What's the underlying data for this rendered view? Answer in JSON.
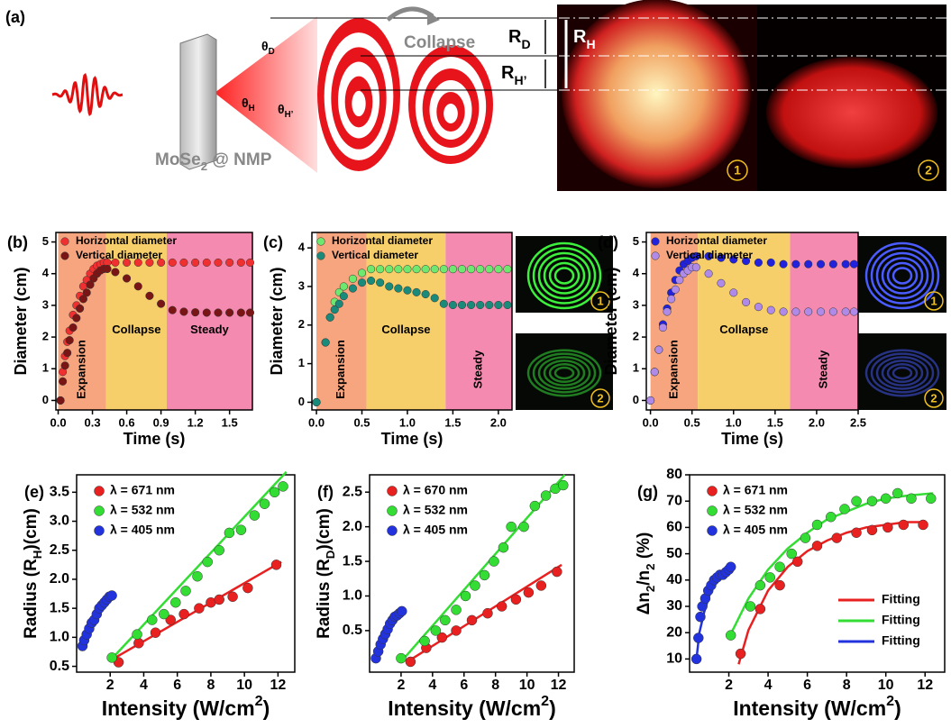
{
  "panel_a": {
    "label": "(a)",
    "collapse": "Collapse",
    "sample": [
      "MoSe",
      {
        "sub": "2"
      },
      " @ NMP"
    ],
    "R_D": [
      "R",
      {
        "sub": "D"
      }
    ],
    "R_H": [
      "R",
      {
        "sub": "H"
      }
    ],
    "R_H2": [
      "R",
      {
        "sub": "H’"
      }
    ],
    "theta_D": [
      "θ",
      {
        "sub": "D"
      }
    ],
    "theta_H": [
      "θ",
      {
        "sub": "H"
      }
    ],
    "theta_H2": [
      "θ",
      {
        "sub": "H’"
      }
    ],
    "photo_labels": [
      "1",
      "2"
    ]
  },
  "chart_data": [
    {
      "type": "scatter",
      "panel": "(b)",
      "y_label": [
        "Diameter (cm)"
      ],
      "x_label": [
        "Time (s)"
      ],
      "xlim": [
        -0.02,
        1.7
      ],
      "xticks": [
        {
          "value": 0,
          "label": "0.0"
        },
        0.3,
        0.6,
        0.9,
        1.2,
        1.5
      ],
      "ylim": [
        -0.3,
        5.3
      ],
      "yticks": [
        0,
        1,
        2,
        3,
        4,
        5
      ],
      "regions": [
        {
          "label": "Expansion",
          "start": 0,
          "end": 0.42,
          "color": "#f6a57e",
          "vertical": true
        },
        {
          "label": "Collapse",
          "start": 0.42,
          "end": 0.95,
          "color": "#f7cf6a",
          "vertical": false
        },
        {
          "label": "Steady",
          "start": 0.95,
          "end": 1.7,
          "color": "#f58ab0",
          "vertical": false
        }
      ],
      "x": [
        0.02,
        0.04,
        0.06,
        0.08,
        0.1,
        0.13,
        0.16,
        0.19,
        0.22,
        0.25,
        0.28,
        0.31,
        0.34,
        0.37,
        0.4,
        0.43,
        0.5,
        0.6,
        0.7,
        0.8,
        0.9,
        1.0,
        1.1,
        1.2,
        1.3,
        1.4,
        1.5,
        1.6,
        1.68
      ],
      "series": [
        {
          "name": "Horizontal diameter",
          "color": "#f03030",
          "values": [
            0,
            0.9,
            1.4,
            1.85,
            2.2,
            2.7,
            3.0,
            3.3,
            3.6,
            3.8,
            4.0,
            4.15,
            4.25,
            4.3,
            4.35,
            4.35,
            4.35,
            4.35,
            4.35,
            4.35,
            4.35,
            4.35,
            4.35,
            4.35,
            4.35,
            4.35,
            4.35,
            4.35,
            4.35
          ]
        },
        {
          "name": "Vertical diameter",
          "color": "#7a1515",
          "values": [
            0,
            0.6,
            1.1,
            1.5,
            1.9,
            2.3,
            2.6,
            2.9,
            3.2,
            3.4,
            3.65,
            3.85,
            4.0,
            4.1,
            4.15,
            4.15,
            4.05,
            3.85,
            3.6,
            3.3,
            3.05,
            2.85,
            2.8,
            2.78,
            2.77,
            2.77,
            2.77,
            2.77,
            2.77
          ]
        }
      ]
    },
    {
      "type": "scatter",
      "panel": "(c)",
      "y_label": [
        "Diameter (cm)"
      ],
      "x_label": [
        "Time (s)"
      ],
      "xlim": [
        -0.05,
        2.15
      ],
      "xticks": [
        {
          "value": 0,
          "label": "0.0"
        },
        0.5,
        {
          "value": 1,
          "label": "1.0"
        },
        1.5,
        {
          "value": 2,
          "label": "2.0"
        }
      ],
      "ylim": [
        -0.2,
        4.4
      ],
      "yticks": [
        0,
        1,
        2,
        3,
        4
      ],
      "regions": [
        {
          "label": "Expansion",
          "start": 0,
          "end": 0.55,
          "color": "#f6a57e",
          "vertical": true
        },
        {
          "label": "Collapse",
          "start": 0.55,
          "end": 1.42,
          "color": "#f7cf6a",
          "vertical": false
        },
        {
          "label": "Steady",
          "start": 1.42,
          "end": 2.15,
          "color": "#f58ab0",
          "vertical": true
        }
      ],
      "x": [
        0,
        0.1,
        0.15,
        0.2,
        0.25,
        0.3,
        0.4,
        0.5,
        0.6,
        0.7,
        0.8,
        0.9,
        1.0,
        1.1,
        1.2,
        1.3,
        1.4,
        1.5,
        1.6,
        1.7,
        1.8,
        1.9,
        2.0,
        2.1
      ],
      "series": [
        {
          "name": "Horizontal diameter",
          "color": "#6ee86e",
          "values": [
            0,
            1.55,
            2.2,
            2.6,
            2.85,
            3.0,
            3.2,
            3.35,
            3.45,
            3.45,
            3.45,
            3.45,
            3.45,
            3.45,
            3.45,
            3.45,
            3.45,
            3.45,
            3.45,
            3.45,
            3.45,
            3.45,
            3.45,
            3.45
          ]
        },
        {
          "name": "Vertical diameter",
          "color": "#1a8a7a",
          "values": [
            0,
            1.55,
            2.2,
            2.4,
            2.55,
            2.75,
            2.95,
            3.1,
            3.15,
            3.1,
            3.0,
            2.95,
            2.9,
            2.85,
            2.8,
            2.7,
            2.55,
            2.52,
            2.52,
            2.52,
            2.52,
            2.52,
            2.52,
            2.52
          ]
        }
      ],
      "insets": {
        "color": "#3cf03c",
        "labels": [
          "1",
          "2"
        ]
      }
    },
    {
      "type": "scatter",
      "panel": "(d)",
      "y_label": [
        "Diameter (cm)"
      ],
      "x_label": [
        "Time (s)"
      ],
      "xlim": [
        -0.05,
        2.5
      ],
      "xticks": [
        {
          "value": 0,
          "label": "0.0"
        },
        0.5,
        {
          "value": 1,
          "label": "1.0"
        },
        1.5,
        {
          "value": 2,
          "label": "2.0"
        },
        2.5
      ],
      "ylim": [
        -0.3,
        5.3
      ],
      "yticks": [
        0,
        1,
        2,
        3,
        4,
        5
      ],
      "regions": [
        {
          "label": "Expansion",
          "start": 0,
          "end": 0.57,
          "color": "#f6a57e",
          "vertical": true
        },
        {
          "label": "Collapse",
          "start": 0.57,
          "end": 1.68,
          "color": "#f7cf6a",
          "vertical": false
        },
        {
          "label": "Steady",
          "start": 1.68,
          "end": 2.5,
          "color": "#f58ab0",
          "vertical": true
        }
      ],
      "x": [
        0,
        0.05,
        0.1,
        0.15,
        0.2,
        0.25,
        0.3,
        0.35,
        0.4,
        0.45,
        0.5,
        0.55,
        0.7,
        0.85,
        1.0,
        1.15,
        1.3,
        1.45,
        1.6,
        1.75,
        1.9,
        2.05,
        2.2,
        2.35,
        2.45
      ],
      "series": [
        {
          "name": "Horizontal diameter",
          "color": "#2222dd",
          "values": [
            0,
            0.9,
            1.6,
            2.4,
            2.9,
            3.4,
            3.8,
            4.1,
            4.3,
            4.4,
            4.5,
            4.55,
            4.55,
            4.5,
            4.45,
            4.4,
            4.35,
            4.35,
            4.3,
            4.3,
            4.3,
            4.3,
            4.3,
            4.3,
            4.3
          ]
        },
        {
          "name": "Vertical diameter",
          "color": "#b08ae8",
          "values": [
            0,
            0.9,
            1.6,
            2.3,
            2.8,
            3.2,
            3.5,
            3.8,
            4.0,
            4.1,
            4.2,
            4.2,
            4.0,
            3.7,
            3.4,
            3.1,
            2.95,
            2.85,
            2.8,
            2.8,
            2.8,
            2.8,
            2.8,
            2.8,
            2.8
          ]
        }
      ],
      "insets": {
        "color": "#4a5cff",
        "labels": [
          "1",
          "2"
        ]
      }
    },
    {
      "type": "scatter",
      "panel": "(e)",
      "y_label": [
        "Radius (R",
        {
          "sub": "H"
        },
        ")(cm)"
      ],
      "x_label": [
        "Intensity (W/cm",
        {
          "sup": "2"
        },
        ")"
      ],
      "xlim": [
        0,
        13
      ],
      "xticks": [
        2,
        4,
        6,
        8,
        10,
        12
      ],
      "ylim": [
        0.4,
        3.8
      ],
      "yticks": [
        0.5,
        {
          "value": 1,
          "label": "1.0"
        },
        1.5,
        {
          "value": 2,
          "label": "2.0"
        },
        2.5,
        {
          "value": 3,
          "label": "3.0"
        },
        3.5
      ],
      "series": [
        {
          "name": "λ = 671 nm",
          "color": "#e82020",
          "x": [
            2.5,
            3.7,
            4.7,
            5.6,
            6.4,
            7.3,
            8.0,
            8.5,
            9.3,
            10.2,
            11.9
          ],
          "values": [
            0.57,
            0.9,
            1.08,
            1.3,
            1.4,
            1.5,
            1.6,
            1.65,
            1.7,
            1.85,
            2.25
          ],
          "fit_x": [
            2.3,
            12.2
          ],
          "fit_values": [
            0.65,
            2.3
          ]
        },
        {
          "name": "λ = 532 nm",
          "color": "#33dd33",
          "x": [
            2.1,
            3.6,
            4.5,
            5.2,
            5.9,
            6.5,
            7.2,
            7.8,
            8.5,
            9.1,
            9.8,
            10.6,
            11.2,
            11.8,
            12.3
          ],
          "values": [
            0.65,
            1.05,
            1.3,
            1.4,
            1.6,
            1.8,
            2.05,
            2.3,
            2.5,
            2.8,
            2.85,
            3.1,
            3.3,
            3.5,
            3.6
          ],
          "fit_x": [
            2.0,
            12.5
          ],
          "fit_values": [
            0.6,
            3.85
          ]
        },
        {
          "name": "λ = 405 nm",
          "color": "#2233dd",
          "x": [
            0.35,
            0.45,
            0.6,
            0.75,
            0.9,
            1.05,
            1.2,
            1.35,
            1.5,
            1.65,
            1.8,
            1.95,
            2.1
          ],
          "values": [
            0.85,
            0.95,
            1.05,
            1.15,
            1.25,
            1.3,
            1.4,
            1.5,
            1.55,
            1.6,
            1.65,
            1.7,
            1.72
          ]
        }
      ]
    },
    {
      "type": "scatter",
      "panel": "(f)",
      "y_label": [
        "Radius (R",
        {
          "sub": "D"
        },
        ")(cm)"
      ],
      "x_label": [
        "Intensity (W/cm",
        {
          "sup": "2"
        },
        ")"
      ],
      "xlim": [
        0,
        13
      ],
      "xticks": [
        2,
        4,
        6,
        8,
        10,
        12
      ],
      "ylim": [
        -0.1,
        2.75
      ],
      "yticks": [
        0.5,
        {
          "value": 1,
          "label": "1.0"
        },
        1.5,
        {
          "value": 2,
          "label": "2.0"
        },
        2.5
      ],
      "series": [
        {
          "name": "λ = 670 nm",
          "color": "#e82020",
          "x": [
            2.6,
            3.6,
            4.6,
            5.5,
            6.5,
            7.5,
            8.4,
            9.3,
            10.1,
            10.9,
            11.9
          ],
          "values": [
            0.05,
            0.25,
            0.4,
            0.5,
            0.65,
            0.75,
            0.85,
            0.95,
            1.05,
            1.15,
            1.35
          ],
          "fit_x": [
            2.4,
            12.2
          ],
          "fit_values": [
            0.05,
            1.45
          ]
        },
        {
          "name": "λ = 532 nm",
          "color": "#33dd33",
          "x": [
            2.0,
            3.5,
            4.2,
            4.8,
            5.5,
            6.1,
            6.7,
            7.3,
            7.9,
            8.5,
            9.0,
            9.8,
            10.5,
            11.2,
            11.8,
            12.3
          ],
          "values": [
            0.1,
            0.35,
            0.5,
            0.65,
            0.8,
            1.0,
            1.15,
            1.3,
            1.5,
            1.7,
            2.0,
            2.0,
            2.3,
            2.45,
            2.55,
            2.6
          ],
          "fit_x": [
            2.0,
            12.4
          ],
          "fit_values": [
            0.05,
            2.75
          ]
        },
        {
          "name": "λ = 405 nm",
          "color": "#2233dd",
          "x": [
            0.4,
            0.55,
            0.7,
            0.85,
            1.0,
            1.15,
            1.3,
            1.45,
            1.6,
            1.75,
            1.9,
            2.05
          ],
          "values": [
            0.1,
            0.2,
            0.3,
            0.38,
            0.45,
            0.52,
            0.6,
            0.65,
            0.7,
            0.72,
            0.75,
            0.78
          ]
        }
      ]
    },
    {
      "type": "scatter",
      "panel": "(g)",
      "y_label": [
        "Δn",
        {
          "sub": "2"
        },
        "/n",
        {
          "sub": "2"
        },
        " (%)"
      ],
      "x_label": [
        "Intensity (W/cm",
        {
          "sup": "2"
        },
        ")"
      ],
      "xlim": [
        0,
        13
      ],
      "xticks": [
        2,
        4,
        6,
        8,
        10,
        12
      ],
      "ylim": [
        5,
        80
      ],
      "yticks": [
        10,
        20,
        30,
        40,
        50,
        60,
        70,
        80
      ],
      "series": [
        {
          "name": "λ = 671 nm",
          "color": "#e82020",
          "fit_name": "Fitting",
          "x": [
            2.6,
            3.6,
            4.6,
            5.5,
            6.5,
            7.5,
            8.5,
            9.3,
            10.1,
            10.9,
            11.9
          ],
          "values": [
            12,
            29,
            38,
            47,
            53,
            56,
            58,
            59,
            60,
            61,
            61
          ],
          "fit_x": [
            2.5,
            3,
            4,
            5,
            6,
            7,
            8,
            9,
            10,
            11,
            12
          ],
          "fit_values": [
            8,
            21,
            36,
            45,
            51,
            55,
            58,
            60,
            61,
            62,
            62
          ]
        },
        {
          "name": "λ = 532 nm",
          "color": "#33dd33",
          "fit_name": "Fitting",
          "x": [
            2.1,
            3.1,
            3.6,
            4.1,
            4.6,
            5.2,
            5.9,
            6.5,
            7.2,
            7.9,
            8.5,
            9.3,
            10.0,
            10.6,
            11.3,
            12.3
          ],
          "values": [
            19,
            30,
            38,
            41,
            45,
            50,
            56,
            61,
            64,
            67,
            70,
            70,
            71,
            73,
            71,
            71
          ],
          "fit_x": [
            2.0,
            3,
            4,
            5,
            6,
            7,
            8,
            9,
            10,
            11,
            12.4
          ],
          "fit_values": [
            18,
            33,
            44,
            52,
            58,
            63,
            66,
            69,
            71,
            72,
            73
          ]
        },
        {
          "name": "λ = 405 nm",
          "color": "#2233dd",
          "fit_name": "Fitting",
          "x": [
            0.35,
            0.45,
            0.55,
            0.65,
            0.8,
            0.95,
            1.1,
            1.25,
            1.4,
            1.55,
            1.7,
            1.85,
            2.0,
            2.1
          ],
          "values": [
            10,
            18,
            26,
            30,
            33,
            36,
            38,
            40,
            41,
            42,
            42,
            43,
            44,
            45
          ],
          "fit_x": [
            0.35,
            0.5,
            0.75,
            1,
            1.25,
            1.5,
            1.75,
            2.0,
            2.15
          ],
          "fit_values": [
            10,
            20,
            28,
            34,
            38,
            41,
            43,
            44,
            45
          ]
        }
      ]
    }
  ]
}
